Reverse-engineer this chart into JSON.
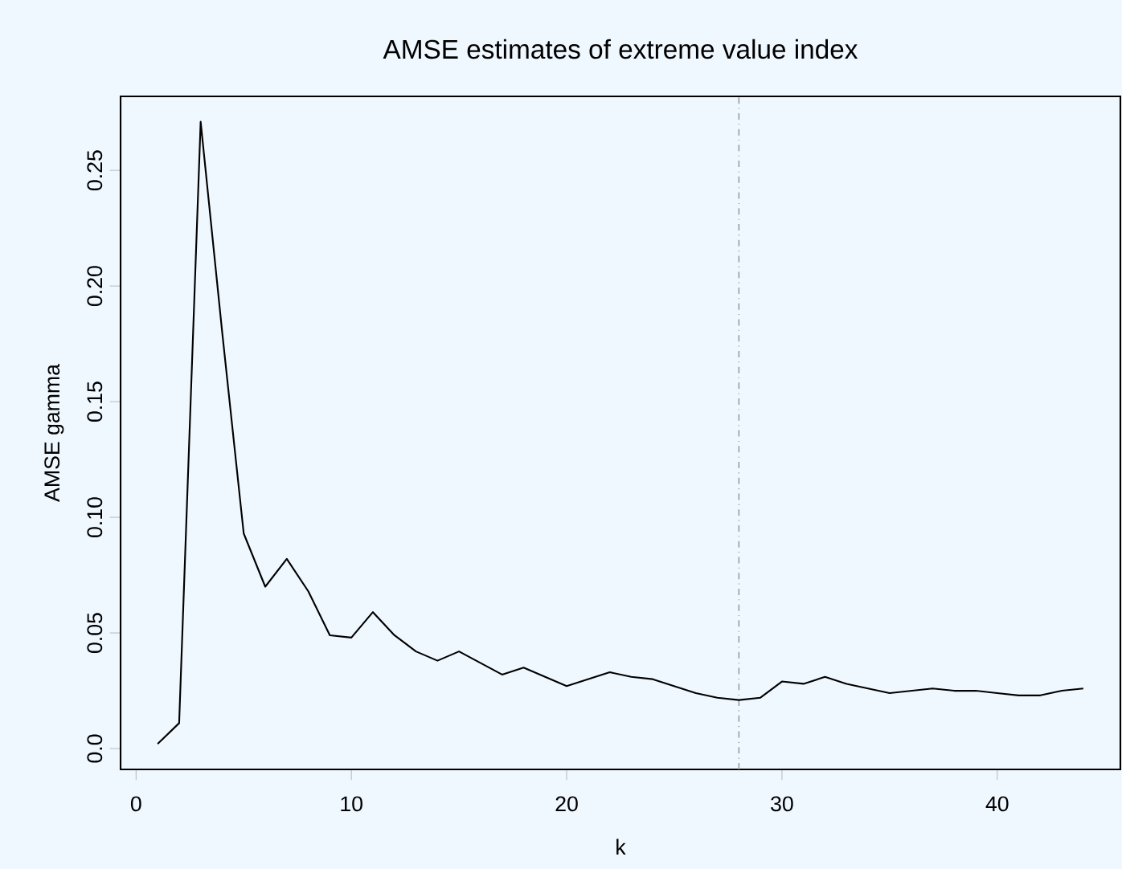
{
  "chart_data": {
    "type": "line",
    "title": "AMSE estimates of extreme value index",
    "xlabel": "k",
    "ylabel": "AMSE gamma",
    "x": [
      1,
      2,
      3,
      4,
      5,
      6,
      7,
      8,
      9,
      10,
      11,
      12,
      13,
      14,
      15,
      16,
      17,
      18,
      19,
      20,
      21,
      22,
      23,
      24,
      25,
      26,
      27,
      28,
      29,
      30,
      31,
      32,
      33,
      34,
      35,
      36,
      37,
      38,
      39,
      40,
      41,
      42,
      43,
      44
    ],
    "series": [
      {
        "color": "#000000",
        "values": [
          0.002,
          0.011,
          0.271,
          0.18,
          0.093,
          0.07,
          0.082,
          0.068,
          0.049,
          0.048,
          0.059,
          0.049,
          0.042,
          0.038,
          0.042,
          0.037,
          0.032,
          0.035,
          0.031,
          0.027,
          0.03,
          0.033,
          0.031,
          0.03,
          0.027,
          0.024,
          0.022,
          0.021,
          0.022,
          0.029,
          0.028,
          0.031,
          0.028,
          0.026,
          0.024,
          0.025,
          0.026,
          0.025,
          0.025,
          0.024,
          0.023,
          0.023,
          0.025,
          0.026
        ]
      }
    ],
    "xlim": [
      -0.72,
      45.72
    ],
    "ylim": [
      -0.009,
      0.282
    ],
    "xticks": [
      0,
      10,
      20,
      30,
      40
    ],
    "yticks": [
      {
        "value": 0,
        "label": "0.0"
      },
      {
        "value": 0.05,
        "label": "0.05"
      },
      {
        "value": 0.1,
        "label": "0.10"
      },
      {
        "value": 0.15,
        "label": "0.15"
      },
      {
        "value": 0.2,
        "label": "0.20"
      },
      {
        "value": 0.25,
        "label": "0.25"
      }
    ],
    "ref_lines": [
      {
        "axis": "x",
        "value": 28,
        "color": "#999999",
        "line_style": "dashdot"
      }
    ],
    "marker": "none",
    "line_style": "solid"
  }
}
